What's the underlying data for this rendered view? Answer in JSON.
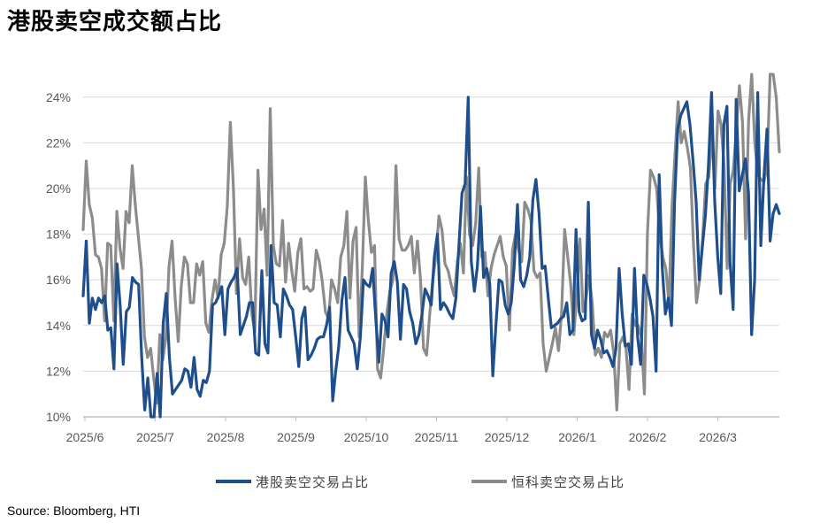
{
  "title": "港股卖空成交额占比",
  "source": "Source: Bloomberg, HTI",
  "chart_data": {
    "type": "line",
    "title": "港股卖空成交额占比",
    "ylim": [
      10,
      25
    ],
    "yticks": [
      "10%",
      "12%",
      "14%",
      "16%",
      "18%",
      "20%",
      "22%",
      "24%"
    ],
    "ytick_values": [
      10,
      12,
      14,
      16,
      18,
      20,
      22,
      24
    ],
    "xticks": [
      "2025/6",
      "2025/7",
      "2025/8",
      "2025/9",
      "2025/10",
      "2025/11",
      "2025/12",
      "2026/1",
      "2026/2",
      "2026/3"
    ],
    "grid": true,
    "legend_position": "bottom",
    "series": [
      {
        "name": "港股卖空交易占比",
        "color": "#1f4e8c",
        "values": [
          15.3,
          17.7,
          14.1,
          15.2,
          14.7,
          15.2,
          15.0,
          15.3,
          13.8,
          13.9,
          12.1,
          16.7,
          14.9,
          12.3,
          14.6,
          14.8,
          16.1,
          15.9,
          15.8,
          12.6,
          10.3,
          11.7,
          10.0,
          10.0,
          11.9,
          10.0,
          14.1,
          15.4,
          12.6,
          11.0,
          11.2,
          11.4,
          11.6,
          12.1,
          12.0,
          11.3,
          12.6,
          11.2,
          10.9,
          11.6,
          11.5,
          12.0,
          14.9,
          15.0,
          15.3,
          15.7,
          13.6,
          15.6,
          15.9,
          16.1,
          16.5,
          13.6,
          14.0,
          14.4,
          15.0,
          15.0,
          12.8,
          12.7,
          16.4,
          13.2,
          12.8,
          17.5,
          15.0,
          14.9,
          13.5,
          15.6,
          15.3,
          14.9,
          14.7,
          13.5,
          12.2,
          14.3,
          14.8,
          12.5,
          12.7,
          13.0,
          13.4,
          13.5,
          13.5,
          14.0,
          14.8,
          10.7,
          12.0,
          13.1,
          15.1,
          16.1,
          13.8,
          13.5,
          13.2,
          12.1,
          13.5,
          16.0,
          15.8,
          15.7,
          16.5,
          14.3,
          12.4,
          14.5,
          14.2,
          13.5,
          16.3,
          16.8,
          15.9,
          13.4,
          15.8,
          15.6,
          14.6,
          14.1,
          13.2,
          13.6,
          14.5,
          15.6,
          15.3,
          14.9,
          17.0,
          18.0,
          14.7,
          15.0,
          14.8,
          14.5,
          14.3,
          15.2,
          17.5,
          19.8,
          20.2,
          24.0,
          16.8,
          15.5,
          16.6,
          19.2,
          16.1,
          16.5,
          15.8,
          11.8,
          14.0,
          16.0,
          15.9,
          14.9,
          14.5,
          15.0,
          16.7,
          19.3,
          16.0,
          15.7,
          16.2,
          17.0,
          19.5,
          20.4,
          18.9,
          16.5,
          16.6,
          15.2,
          13.9,
          14.0,
          14.1,
          14.3,
          14.4,
          15.0,
          13.6,
          13.8,
          18.2,
          14.6,
          14.2,
          14.3,
          19.4,
          13.6,
          13.0,
          13.8,
          13.4,
          12.8,
          12.9,
          12.6,
          12.2,
          13.0,
          16.5,
          14.5,
          13.1,
          13.2,
          12.3,
          16.5,
          13.5,
          12.3,
          16.2,
          15.8,
          15.2,
          14.4,
          12.0,
          20.6,
          16.5,
          14.5,
          15.2,
          14.0,
          19.4,
          22.6,
          23.2,
          23.5,
          23.8,
          22.8,
          21.2,
          19.4,
          16.0,
          17.4,
          18.8,
          21.0,
          24.2,
          19.5,
          17.0,
          15.4,
          22.8,
          23.6,
          16.8,
          14.7,
          23.9,
          19.9,
          20.6,
          21.3,
          19.8,
          13.6,
          16.0,
          24.2,
          17.5,
          20.5,
          22.6,
          17.7,
          18.9,
          19.3,
          18.9
        ]
      },
      {
        "name": "恒科卖空交易占比",
        "color": "#8c8c8c",
        "values": [
          18.2,
          21.2,
          19.3,
          18.7,
          17.1,
          17.0,
          16.5,
          14.2,
          17.6,
          17.5,
          14.2,
          19.0,
          17.4,
          16.5,
          19.0,
          18.5,
          21.0,
          19.3,
          17.9,
          16.5,
          13.5,
          12.6,
          13.0,
          11.7,
          10.6,
          13.6,
          12.5,
          13.5,
          16.6,
          17.7,
          15.2,
          13.3,
          15.7,
          17.0,
          16.7,
          15.0,
          15.0,
          16.7,
          16.2,
          16.8,
          14.1,
          13.7,
          15.1,
          16.0,
          15.2,
          17.1,
          17.6,
          19.2,
          22.9,
          20.0,
          15.4,
          17.8,
          16.1,
          15.8,
          17.0,
          14.5,
          13.7,
          20.8,
          18.2,
          19.1,
          16.2,
          23.5,
          17.5,
          16.7,
          16.6,
          18.6,
          15.9,
          17.6,
          16.4,
          15.5,
          17.2,
          17.8,
          15.6,
          15.7,
          15.5,
          15.6,
          17.3,
          16.8,
          15.9,
          14.6,
          14.3,
          16.0,
          15.6,
          15.0,
          17.0,
          17.5,
          19.0,
          15.2,
          17.7,
          18.3,
          13.5,
          16.4,
          20.5,
          18.6,
          17.2,
          17.5,
          12.1,
          11.7,
          13.0,
          14.5,
          15.5,
          16.0,
          21.0,
          17.8,
          17.3,
          17.3,
          17.5,
          17.9,
          16.3,
          17.7,
          16.0,
          13.0,
          12.7,
          14.5,
          16.0,
          17.0,
          18.8,
          18.2,
          16.7,
          16.4,
          15.8,
          15.3,
          16.8,
          17.6,
          16.3,
          20.5,
          18.0,
          17.5,
          18.5,
          20.9,
          17.0,
          17.2,
          15.3,
          16.5,
          17.1,
          17.5,
          17.9,
          17.0,
          16.6,
          13.8,
          17.3,
          18.0,
          17.3,
          16.8,
          19.4,
          19.1,
          18.6,
          16.4,
          16.1,
          16.3,
          13.2,
          12.0,
          12.6,
          13.2,
          13.9,
          12.9,
          14.5,
          18.2,
          17.0,
          15.8,
          13.6,
          15.4,
          17.8,
          14.6,
          15.2,
          16.2,
          15.0,
          12.7,
          13.0,
          12.6,
          13.7,
          13.5,
          13.8,
          12.8,
          10.3,
          13.2,
          13.5,
          13.0,
          11.2,
          14.5,
          14.0,
          14.0,
          13.5,
          11.0,
          18.0,
          20.8,
          20.5,
          20.0,
          18.0,
          17.0,
          16.5,
          15.0,
          19.2,
          21.5,
          23.8,
          22.0,
          22.5,
          21.8,
          20.9,
          17.6,
          15.0,
          16.0,
          17.8,
          20.2,
          20.5,
          22.4,
          20.0,
          23.4,
          22.8,
          21.0,
          16.5,
          20.2,
          20.8,
          22.6,
          24.5,
          22.9,
          17.8,
          23.0,
          25.0,
          22.0,
          20.6,
          20.4,
          20.3,
          20.9,
          25.0,
          25.0,
          24.0,
          21.6
        ]
      }
    ]
  }
}
